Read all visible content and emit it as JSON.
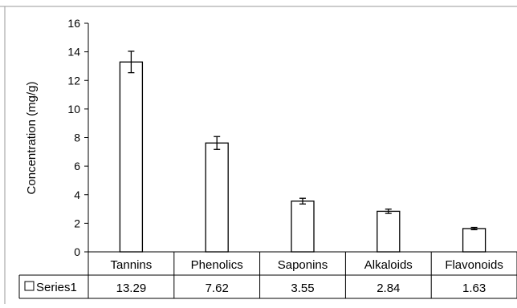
{
  "chart_data": {
    "type": "bar",
    "title": "",
    "ylabel": "Concentration (mg/g)",
    "xlabel": "",
    "ylim": [
      0,
      16
    ],
    "yticks": [
      0,
      2,
      4,
      6,
      8,
      10,
      12,
      14,
      16
    ],
    "grid": false,
    "categories": [
      "Tannins",
      "Phenolics",
      "Saponins",
      "Alkaloids",
      "Flavonoids"
    ],
    "series": [
      {
        "name": "Series1",
        "values": [
          13.29,
          7.62,
          3.55,
          2.84,
          1.63
        ],
        "errors": [
          0.75,
          0.45,
          0.2,
          0.15,
          0.08
        ],
        "value_labels": [
          "13.29",
          "7.62",
          "3.55",
          "2.84",
          "1.63"
        ],
        "fill": "#ffffff",
        "stroke": "#000000"
      }
    ],
    "legend": "data-table"
  }
}
